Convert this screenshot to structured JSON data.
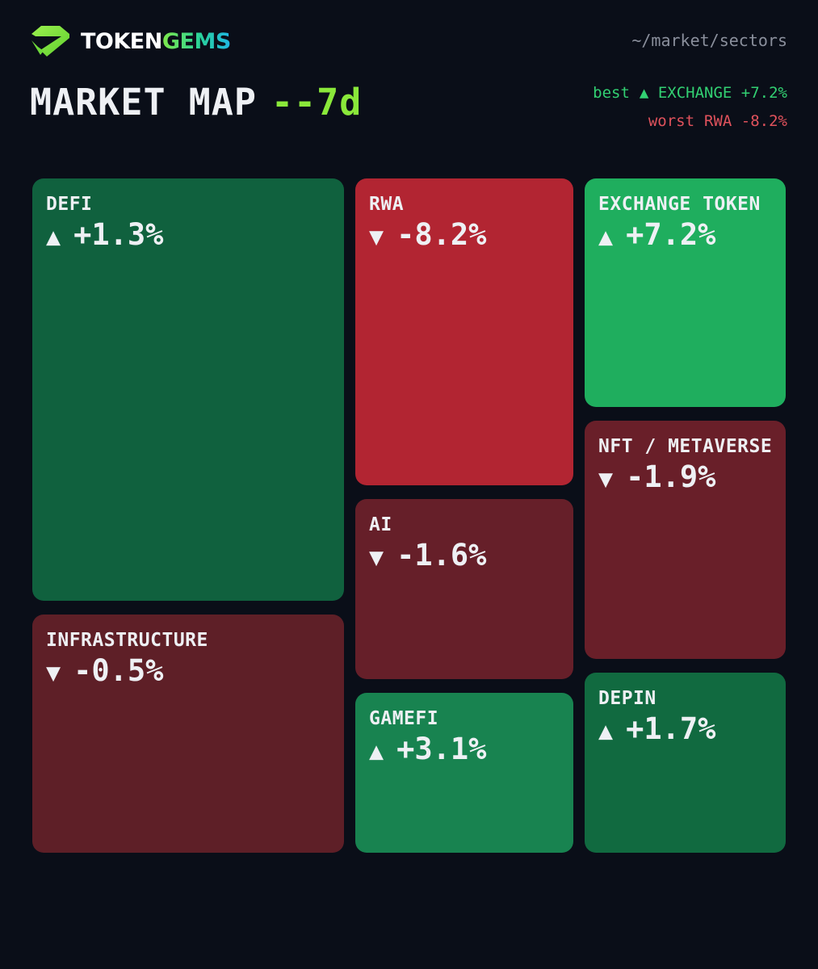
{
  "brand": {
    "name_part1": "TOKEN",
    "name_part2": "GEMS",
    "icon": "gem-logo-icon"
  },
  "path": "~/market/sectors",
  "title": {
    "main": "MARKET MAP",
    "separator": "--",
    "period": "7d"
  },
  "summary": {
    "best": {
      "label": "best",
      "arrow": "▲",
      "sector": "EXCHANGE",
      "change": "+7.2%"
    },
    "worst": {
      "label": "worst",
      "sector": "RWA",
      "change": "-8.2%"
    }
  },
  "colors": {
    "background": "#0a0e18",
    "accent": "#8ae83a",
    "best": "#32d072",
    "worst": "#e0525c"
  },
  "sectors": [
    {
      "name": "DEFI",
      "arrow": "▲",
      "change": "+1.3%",
      "color": "#10613e"
    },
    {
      "name": "INFRASTRUCTURE",
      "arrow": "▼",
      "change": "-0.5%",
      "color": "#5e1f27"
    },
    {
      "name": "RWA",
      "arrow": "▼",
      "change": "-8.2%",
      "color": "#b22532"
    },
    {
      "name": "AI",
      "arrow": "▼",
      "change": "-1.6%",
      "color": "#661f29"
    },
    {
      "name": "GAMEFI",
      "arrow": "▲",
      "change": "+3.1%",
      "color": "#188350"
    },
    {
      "name": "EXCHANGE TOKEN",
      "arrow": "▲",
      "change": "+7.2%",
      "color": "#1fae5e"
    },
    {
      "name": "NFT / METAVERSE",
      "arrow": "▼",
      "change": "-1.9%",
      "color": "#691f29"
    },
    {
      "name": "DEPIN",
      "arrow": "▲",
      "change": "+1.7%",
      "color": "#116a40"
    }
  ]
}
